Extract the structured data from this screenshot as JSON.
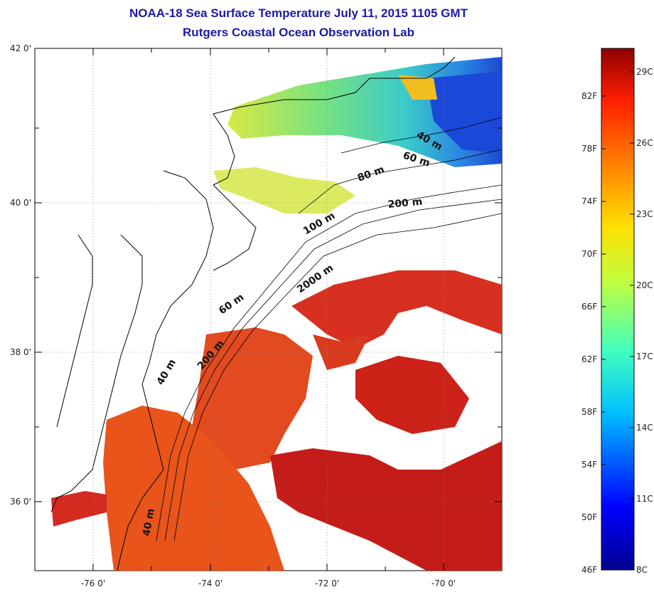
{
  "title_line1": "NOAA-18 Sea Surface Temperature July 11, 2015 1105 GMT",
  "title_line2": "Rutgers Coastal Ocean Observation Lab",
  "x_ticks": [
    "-76 0'",
    "-74 0'",
    "-72 0'",
    "-70 0'"
  ],
  "y_ticks": [
    "42 0'",
    "40 0'",
    "38 0'",
    "36 0'"
  ],
  "contour_labels": [
    "40 m",
    "60 m",
    "80 m",
    "200 m",
    "100 m",
    "2000 m",
    "60 m",
    "200 m",
    "40 m",
    "40 m"
  ],
  "colorbar": {
    "fahrenheit": [
      "82F",
      "78F",
      "74F",
      "70F",
      "66F",
      "62F",
      "58F",
      "54F",
      "50F",
      "46F"
    ],
    "celsius": [
      "29C",
      "26C",
      "23C",
      "20C",
      "17C",
      "14C",
      "11C",
      "8C"
    ]
  },
  "colors": {
    "title": "#1a1aa6",
    "land_outline": "#000000",
    "warm": "#e0401c",
    "hot": "#c01818",
    "cool": "#1a60e0",
    "mid": "#40d0b0"
  }
}
